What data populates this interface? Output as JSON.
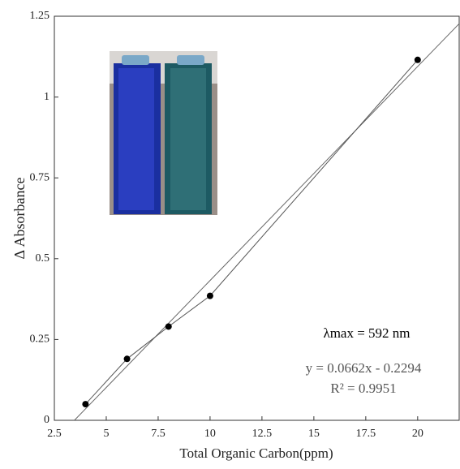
{
  "chart_data": {
    "type": "scatter",
    "x_label": "Total Organic Carbon(ppm)",
    "y_label": "Δ Absorbance",
    "x": [
      4,
      6,
      8,
      10,
      20
    ],
    "series": [
      {
        "values": [
          0.05,
          0.19,
          0.29,
          0.385,
          1.115
        ],
        "color": "#000000"
      }
    ],
    "xlim": [
      2.5,
      22
    ],
    "ylim": [
      0,
      1.25
    ],
    "xticks": [
      2.5,
      5,
      7.5,
      10,
      12.5,
      15,
      17.5,
      20
    ],
    "yticks": [
      0,
      0.25,
      0.5,
      0.75,
      1,
      1.25
    ],
    "trendline": {
      "slope": 0.0662,
      "intercept": -0.2294,
      "equation": "y = 0.0662x - 0.2294",
      "r2": "R² = 0.9951"
    },
    "annotation": "λmax = 592 nm"
  }
}
